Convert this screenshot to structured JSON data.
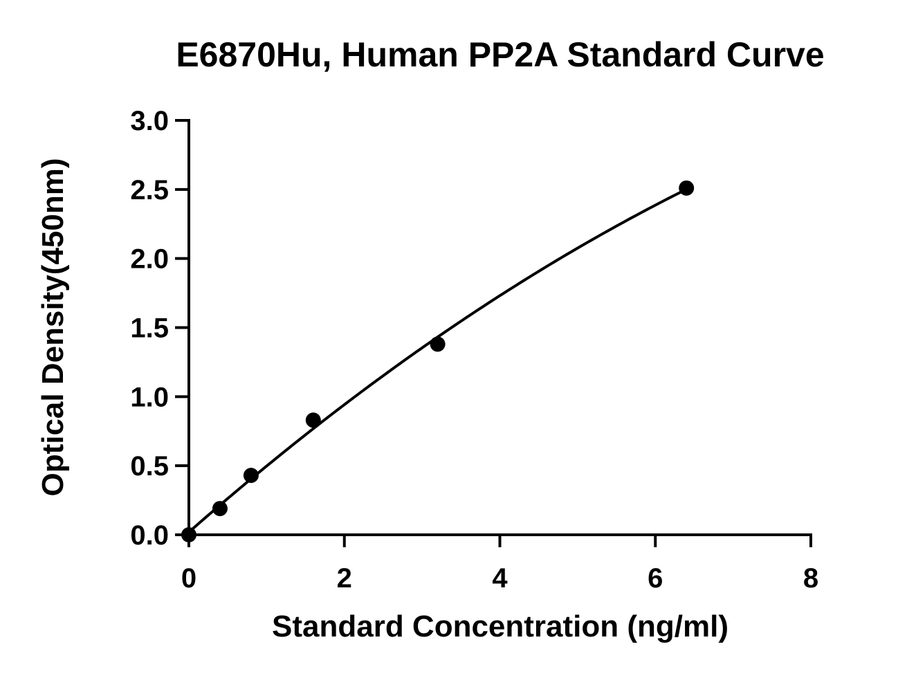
{
  "chart_data": {
    "type": "scatter",
    "title": "E6870Hu, Human PP2A Standard Curve",
    "xlabel": "Standard Concentration (ng/ml)",
    "ylabel": "Optical Density(450nm)",
    "xlim": [
      0,
      8
    ],
    "ylim": [
      0,
      3.0
    ],
    "x_ticks": [
      0,
      2,
      4,
      6,
      8
    ],
    "x_tick_labels": [
      "0",
      "2",
      "4",
      "6",
      "8"
    ],
    "y_ticks": [
      0,
      0.5,
      1.0,
      1.5,
      2.0,
      2.5,
      3.0
    ],
    "y_tick_labels": [
      "0.0",
      "0.5",
      "1.0",
      "1.5",
      "2.0",
      "2.5",
      "3.0"
    ],
    "grid": false,
    "legend": "none",
    "series": [
      {
        "x": [
          0,
          0.4,
          0.8,
          1.6,
          3.2,
          6.4
        ],
        "y": [
          0.0,
          0.19,
          0.43,
          0.83,
          1.38,
          2.51
        ],
        "marker": "filled-circle",
        "color": "#000000",
        "fit_curve": true
      }
    ]
  }
}
